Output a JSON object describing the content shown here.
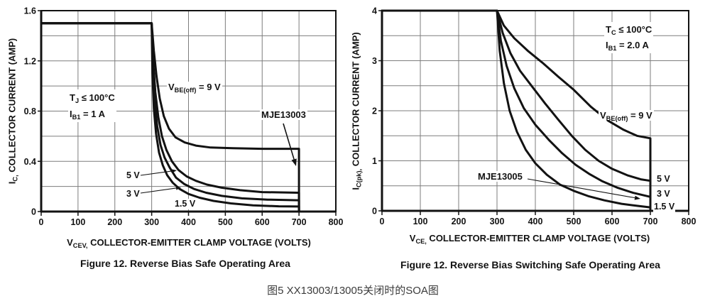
{
  "page": {
    "background": "#ffffff",
    "ink": "#121212",
    "grid_color": "#7d7d7d",
    "caption_cn": "图5 XX13003/13005关闭时的SOA图"
  },
  "chart_data": [
    {
      "type": "line",
      "title": "Figure 12. Reverse Bias Safe Operating Area",
      "xlabel": "VCEV, COLLECTOR-EMITTER CLAMP VOLTAGE (VOLTS)",
      "ylabel": "IC, COLLECTOR CURRENT (AMP)",
      "xlabel_parts": {
        "pre": "V",
        "sub": "CEV,",
        "post": " COLLECTOR-EMITTER CLAMP VOLTAGE (VOLTS)"
      },
      "ylabel_parts": {
        "pre": "I",
        "sub": "C,",
        "post": " COLLECTOR CURRENT (AMP)"
      },
      "xlim": [
        0,
        800
      ],
      "ylim": [
        0,
        1.6
      ],
      "xgrid_step": 100,
      "ygrid_step": 0.2,
      "grid": true,
      "legend": "inline labels",
      "xticks": [
        "0",
        "100",
        "200",
        "300",
        "400",
        "500",
        "600",
        "700",
        "800"
      ],
      "yticks": [
        "1.6",
        "1.2",
        "0.8",
        "0.4",
        "0"
      ],
      "ytick_vals": [
        1.6,
        1.2,
        0.8,
        0.4,
        0
      ],
      "conditions": [
        {
          "pre": "T",
          "sub": "J",
          "post": " ≤ 100°C"
        },
        {
          "pre": "I",
          "sub": "B1",
          "post": " = 1 A"
        }
      ],
      "series_label": {
        "pre": "V",
        "sub": "BE(off)",
        "post": " = 9 V"
      },
      "device_label": "MJE13003",
      "inline_labels": [
        "5 V",
        "3 V",
        "1.5 V"
      ],
      "series": [
        {
          "name": "VBE(off) = 9 V",
          "points": [
            [
              0,
              1.5
            ],
            [
              300,
              1.5
            ],
            [
              306,
              1.28
            ],
            [
              313,
              1.08
            ],
            [
              322,
              0.9
            ],
            [
              333,
              0.76
            ],
            [
              347,
              0.66
            ],
            [
              365,
              0.59
            ],
            [
              390,
              0.55
            ],
            [
              420,
              0.525
            ],
            [
              460,
              0.51
            ],
            [
              520,
              0.505
            ],
            [
              600,
              0.5
            ],
            [
              700,
              0.5
            ],
            [
              700,
              0
            ]
          ]
        },
        {
          "name": "5 V",
          "points": [
            [
              0,
              1.5
            ],
            [
              300,
              1.5
            ],
            [
              304,
              1.2
            ],
            [
              310,
              0.95
            ],
            [
              318,
              0.75
            ],
            [
              328,
              0.6
            ],
            [
              340,
              0.49
            ],
            [
              355,
              0.4
            ],
            [
              373,
              0.33
            ],
            [
              395,
              0.28
            ],
            [
              420,
              0.245
            ],
            [
              450,
              0.215
            ],
            [
              490,
              0.19
            ],
            [
              540,
              0.17
            ],
            [
              600,
              0.155
            ],
            [
              700,
              0.15
            ],
            [
              700,
              0
            ]
          ]
        },
        {
          "name": "3 V",
          "points": [
            [
              0,
              1.5
            ],
            [
              300,
              1.5
            ],
            [
              303,
              1.15
            ],
            [
              308,
              0.88
            ],
            [
              315,
              0.68
            ],
            [
              324,
              0.53
            ],
            [
              335,
              0.43
            ],
            [
              349,
              0.35
            ],
            [
              366,
              0.27
            ],
            [
              388,
              0.22
            ],
            [
              415,
              0.18
            ],
            [
              448,
              0.15
            ],
            [
              490,
              0.125
            ],
            [
              545,
              0.105
            ],
            [
              615,
              0.095
            ],
            [
              700,
              0.09
            ],
            [
              700,
              0
            ]
          ]
        },
        {
          "name": "1.5 V",
          "points": [
            [
              0,
              1.5
            ],
            [
              300,
              1.5
            ],
            [
              302,
              1.1
            ],
            [
              306,
              0.82
            ],
            [
              312,
              0.62
            ],
            [
              320,
              0.47
            ],
            [
              330,
              0.37
            ],
            [
              342,
              0.29
            ],
            [
              357,
              0.23
            ],
            [
              376,
              0.18
            ],
            [
              400,
              0.14
            ],
            [
              430,
              0.11
            ],
            [
              468,
              0.085
            ],
            [
              515,
              0.065
            ],
            [
              575,
              0.05
            ],
            [
              645,
              0.042
            ],
            [
              700,
              0.04
            ],
            [
              700,
              0
            ]
          ]
        }
      ]
    },
    {
      "type": "line",
      "title": "Figure 12. Reverse Bias Switching Safe Operating Area",
      "xlabel": "VCE, COLLECTOR-EMITTER CLAMP VOLTAGE (VOLTS)",
      "ylabel": "IC(pk), COLLECTOR CURRENT (AMP)",
      "xlabel_parts": {
        "pre": "V",
        "sub": "CE,",
        "post": " COLLECTOR-EMITTER CLAMP VOLTAGE (VOLTS)"
      },
      "ylabel_parts": {
        "pre": "I",
        "sub": "C(pk),",
        "post": " COLLECTOR CURRENT (AMP)"
      },
      "xlim": [
        0,
        800
      ],
      "ylim": [
        0,
        4
      ],
      "xgrid_step": 100,
      "ygrid_step": 0.5,
      "grid": true,
      "legend": "inline labels",
      "xticks": [
        "0",
        "100",
        "200",
        "300",
        "400",
        "500",
        "600",
        "700",
        "800"
      ],
      "yticks": [
        "4",
        "3",
        "2",
        "1",
        "0"
      ],
      "ytick_vals": [
        4,
        3,
        2,
        1,
        0
      ],
      "conditions": [
        {
          "pre": "T",
          "sub": "C",
          "post": " ≤ 100°C"
        },
        {
          "pre": "I",
          "sub": "B1",
          "post": " = 2.0 A"
        }
      ],
      "series_label": {
        "pre": "V",
        "sub": "BE(off)",
        "post": " = 9 V"
      },
      "device_label": "MJE13005",
      "inline_labels": [
        "5 V",
        "3 V",
        "1.5 V"
      ],
      "series": [
        {
          "name": "VBE(off) = 9 V",
          "points": [
            [
              0,
              4
            ],
            [
              300,
              4
            ],
            [
              318,
              3.7
            ],
            [
              345,
              3.45
            ],
            [
              380,
              3.2
            ],
            [
              420,
              2.95
            ],
            [
              460,
              2.68
            ],
            [
              500,
              2.42
            ],
            [
              545,
              2.08
            ],
            [
              590,
              1.8
            ],
            [
              630,
              1.62
            ],
            [
              665,
              1.5
            ],
            [
              700,
              1.45
            ],
            [
              700,
              0
            ]
          ]
        },
        {
          "name": "5 V",
          "points": [
            [
              0,
              4
            ],
            [
              300,
              4
            ],
            [
              315,
              3.55
            ],
            [
              335,
              3.15
            ],
            [
              360,
              2.8
            ],
            [
              390,
              2.5
            ],
            [
              425,
              2.15
            ],
            [
              460,
              1.82
            ],
            [
              495,
              1.5
            ],
            [
              530,
              1.22
            ],
            [
              565,
              1.0
            ],
            [
              600,
              0.84
            ],
            [
              640,
              0.71
            ],
            [
              675,
              0.63
            ],
            [
              700,
              0.6
            ],
            [
              700,
              0
            ]
          ]
        },
        {
          "name": "3 V",
          "points": [
            [
              0,
              4
            ],
            [
              300,
              4
            ],
            [
              310,
              3.4
            ],
            [
              325,
              2.9
            ],
            [
              345,
              2.45
            ],
            [
              370,
              2.05
            ],
            [
              400,
              1.72
            ],
            [
              435,
              1.42
            ],
            [
              470,
              1.15
            ],
            [
              505,
              0.92
            ],
            [
              540,
              0.74
            ],
            [
              575,
              0.59
            ],
            [
              615,
              0.46
            ],
            [
              655,
              0.36
            ],
            [
              700,
              0.28
            ],
            [
              700,
              0
            ]
          ]
        },
        {
          "name": "1.5 V",
          "points": [
            [
              0,
              4
            ],
            [
              300,
              4
            ],
            [
              307,
              3.2
            ],
            [
              318,
              2.55
            ],
            [
              333,
              2.0
            ],
            [
              352,
              1.58
            ],
            [
              375,
              1.22
            ],
            [
              400,
              0.95
            ],
            [
              430,
              0.72
            ],
            [
              465,
              0.52
            ],
            [
              500,
              0.4
            ],
            [
              540,
              0.29
            ],
            [
              580,
              0.21
            ],
            [
              625,
              0.14
            ],
            [
              665,
              0.1
            ],
            [
              700,
              0.07
            ],
            [
              700,
              0
            ]
          ]
        }
      ]
    }
  ]
}
